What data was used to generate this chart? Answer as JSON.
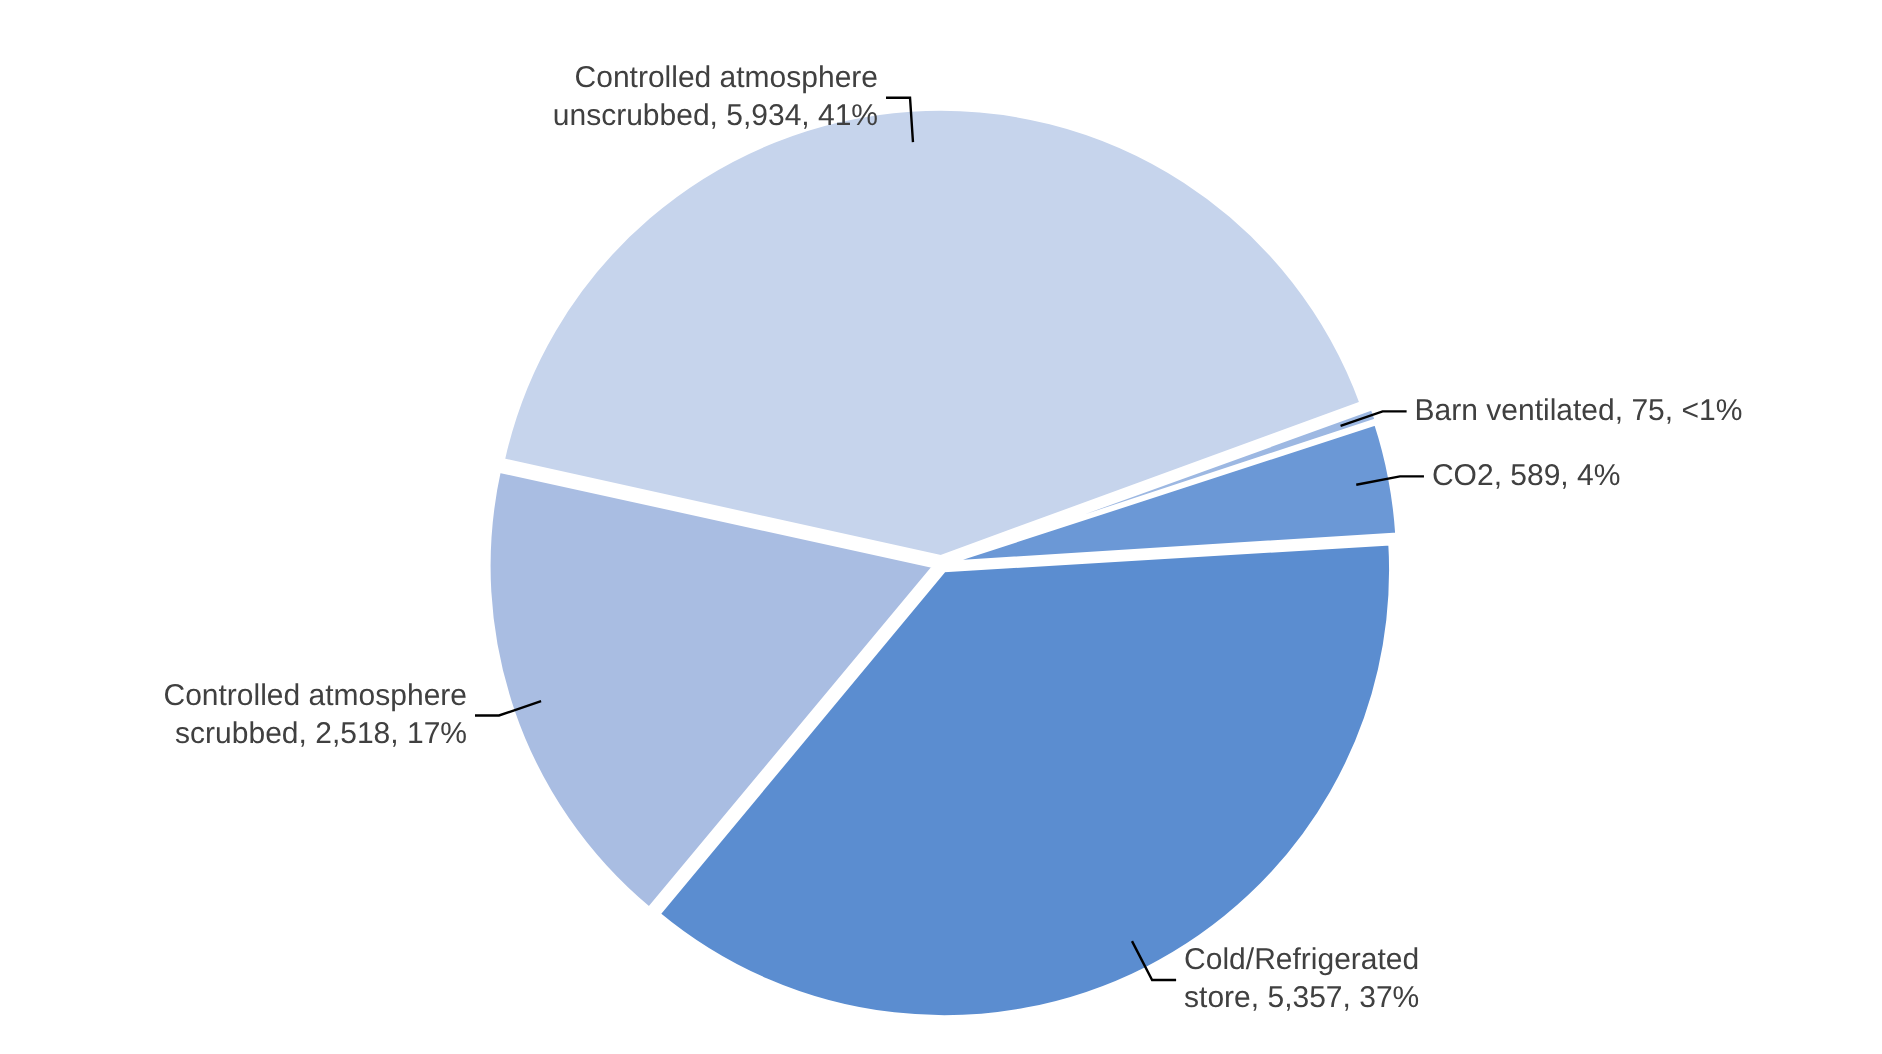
{
  "chart_data": {
    "type": "pie",
    "categories": [
      "Barn ventilated",
      "CO2",
      "Cold/Refrigerated store",
      "Controlled atmosphere scrubbed",
      "Controlled atmosphere unscrubbed"
    ],
    "values": [
      75,
      589,
      5357,
      2518,
      5934
    ],
    "value_labels": [
      "75, <1%",
      "589, 4%",
      "5,357, 37%",
      "2,518, 17%",
      "5,934, 41%"
    ],
    "colors": [
      "#9db8e2",
      "#6b98d6",
      "#5b8dd0",
      "#a9bde2",
      "#c6d4ec"
    ],
    "legend": false
  }
}
